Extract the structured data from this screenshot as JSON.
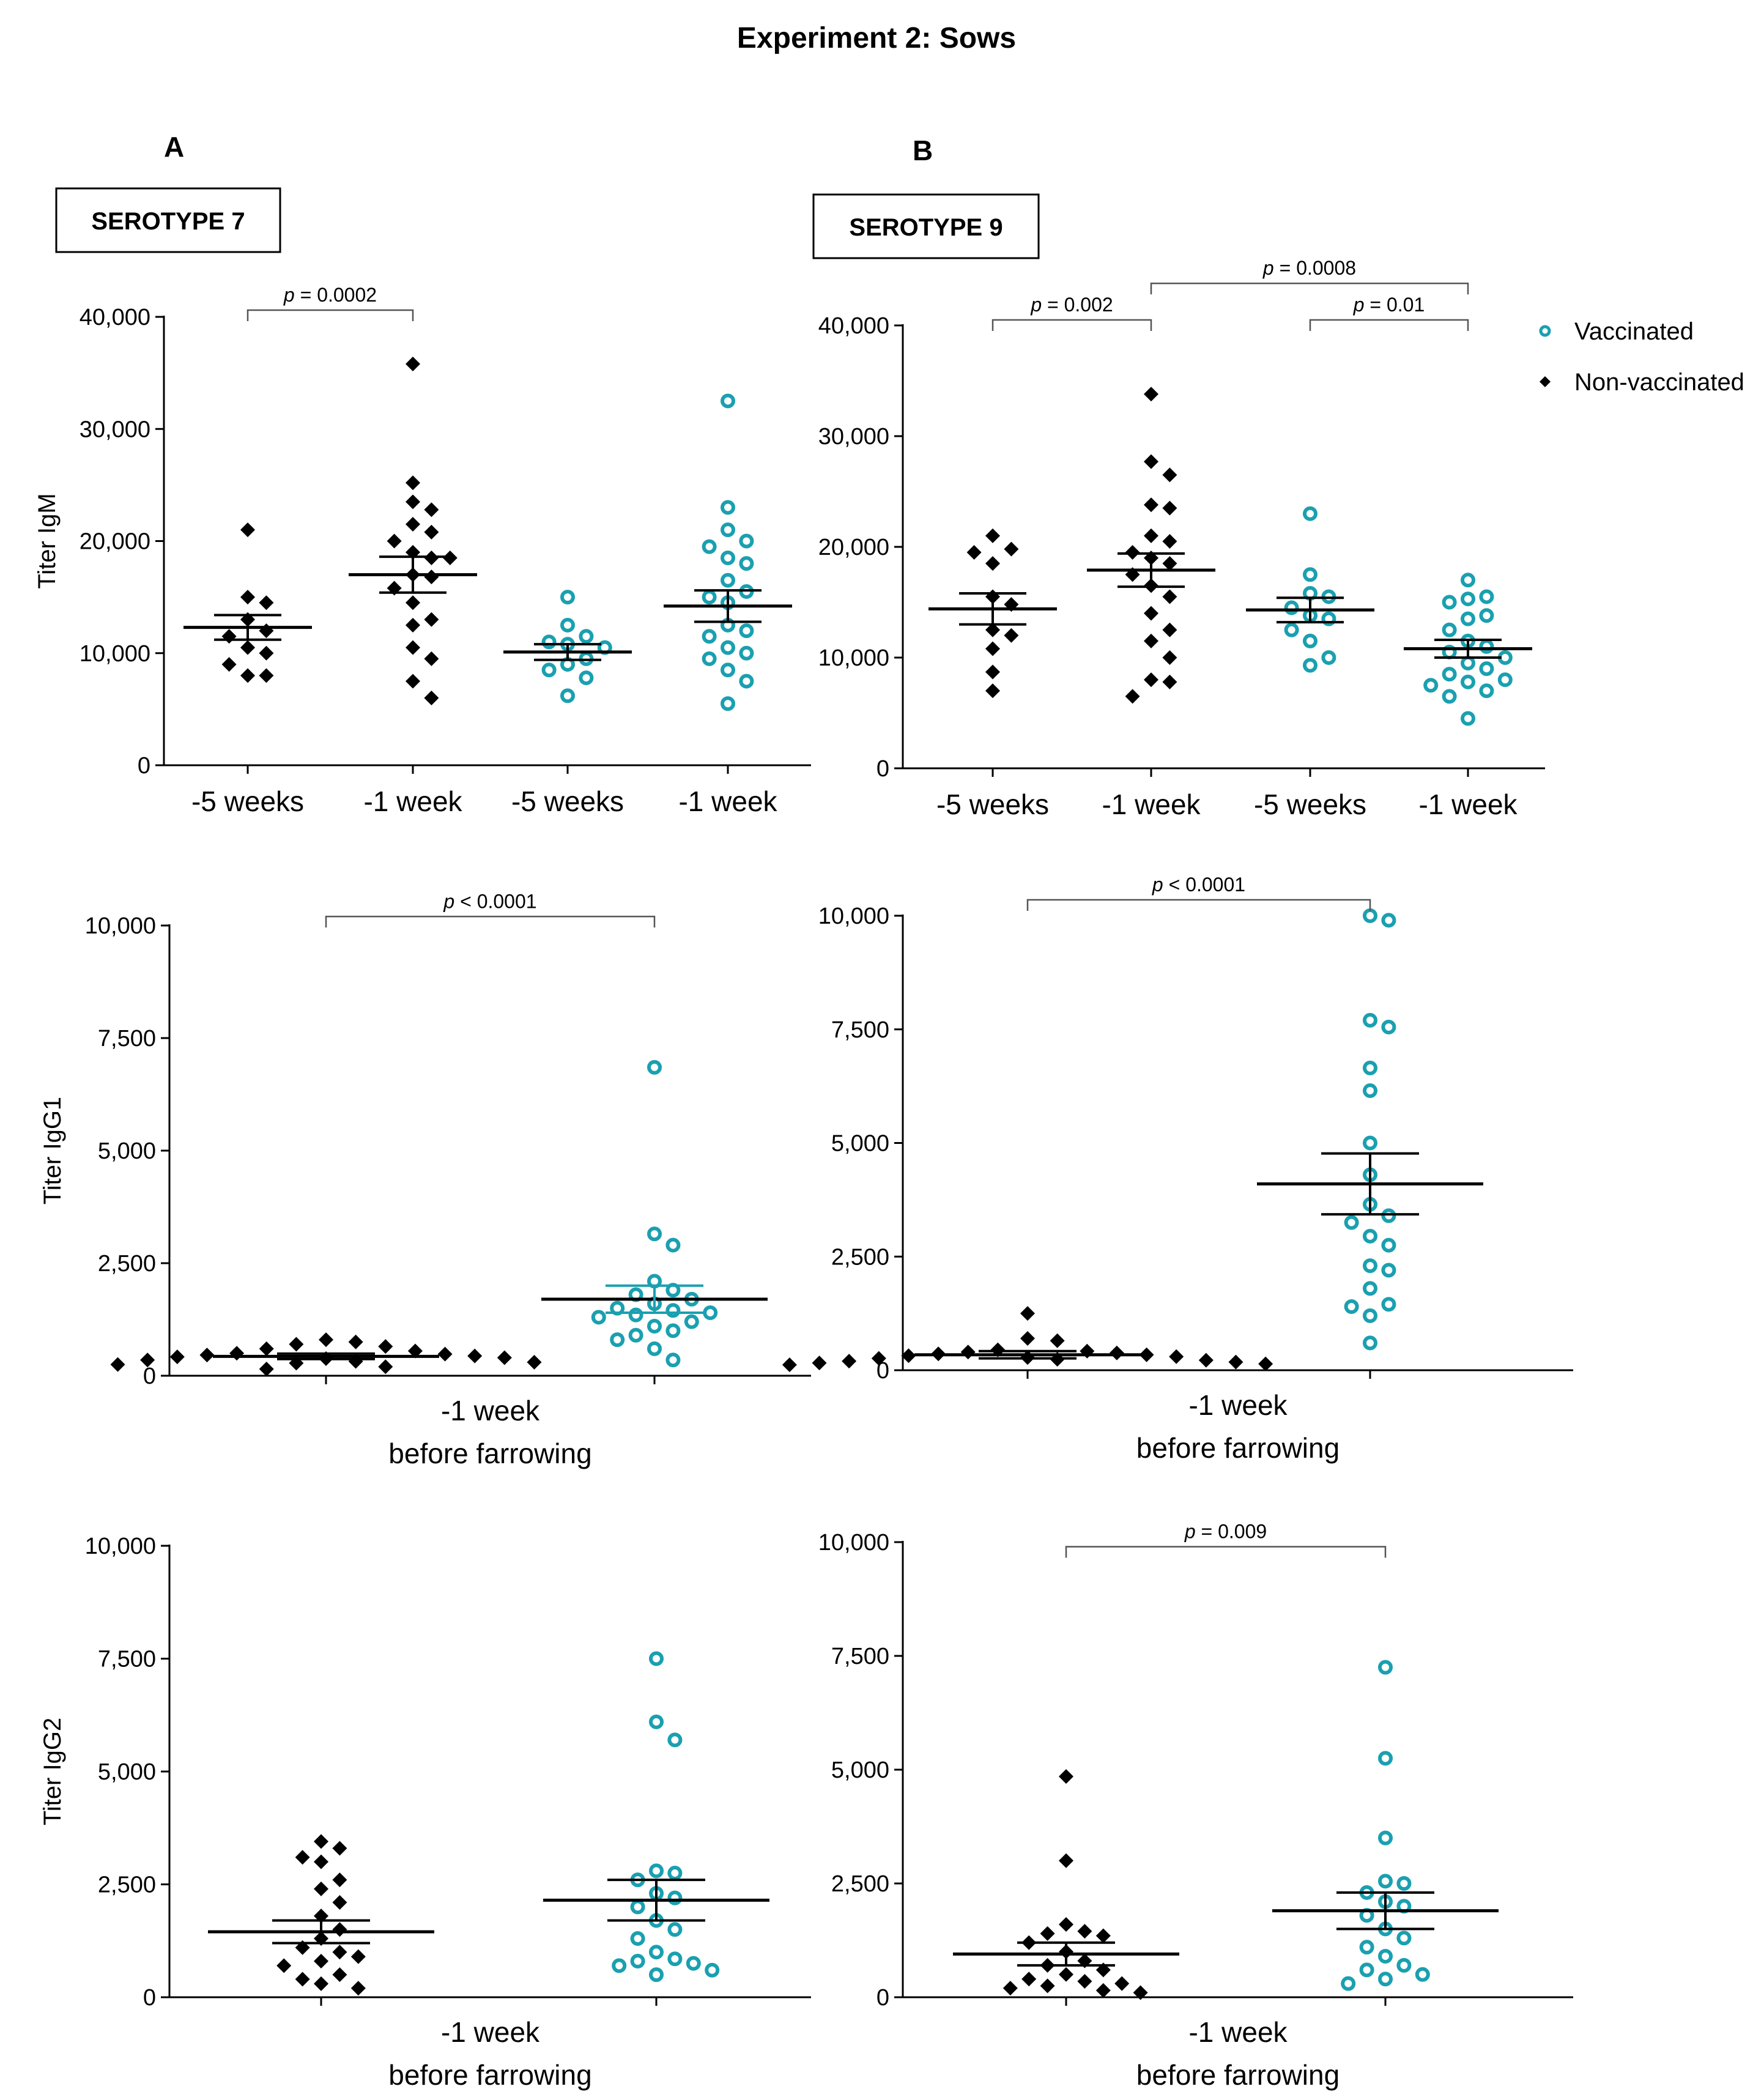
{
  "figure_title": "Experiment 2: Sows",
  "panels": [
    {
      "letter": "A",
      "serotype": "SEROTYPE 7"
    },
    {
      "letter": "B",
      "serotype": "SEROTYPE 9"
    }
  ],
  "legend": {
    "vaccinated": "Vaccinated",
    "non_vaccinated": "Non-vaccinated"
  },
  "colors": {
    "non_vaccinated": "#000000",
    "vaccinated": "#1aa0b0",
    "bracket": "#555555"
  },
  "chart_data": [
    {
      "id": "igm-7",
      "type": "scatter",
      "ylabel": "Titer IgM",
      "ylim": [
        0,
        40000
      ],
      "yticks": [
        0,
        10000,
        20000,
        30000,
        40000
      ],
      "ytick_labels": [
        "0",
        "10,000",
        "20,000",
        "30,000",
        "40,000"
      ],
      "categories": [
        "-5 weeks",
        "-1 week",
        "-5 weeks",
        "-1 week"
      ],
      "xlabel_lines": [],
      "groups": [
        {
          "series": "Non-vaccinated",
          "marker": "diamond",
          "mean": 12300,
          "sem": 1100,
          "values": [
            21000,
            15000,
            14500,
            13000,
            12000,
            11500,
            10500,
            10000,
            9000,
            8000,
            8000
          ]
        },
        {
          "series": "Non-vaccinated",
          "marker": "diamond",
          "mean": 17000,
          "sem": 1600,
          "values": [
            35800,
            25200,
            23500,
            22800,
            21500,
            20800,
            20000,
            19000,
            18500,
            18500,
            17000,
            16800,
            15800,
            14500,
            13000,
            12500,
            10500,
            9500,
            7500,
            6000
          ]
        },
        {
          "series": "Vaccinated",
          "marker": "circle",
          "mean": 10100,
          "sem": 700,
          "values": [
            15000,
            12500,
            11500,
            11000,
            10800,
            10500,
            9500,
            9000,
            8500,
            7800,
            6200
          ]
        },
        {
          "series": "Vaccinated",
          "marker": "circle",
          "mean": 14200,
          "sem": 1400,
          "values": [
            32500,
            23000,
            21000,
            20000,
            19500,
            18500,
            18000,
            16500,
            15500,
            15000,
            14500,
            12500,
            12000,
            11500,
            10500,
            10000,
            9500,
            8500,
            7500,
            5500
          ]
        }
      ],
      "brackets": [
        {
          "from": 0,
          "to": 1,
          "label": "p = 0.0002",
          "value": 40600
        }
      ]
    },
    {
      "id": "igm-9",
      "type": "scatter",
      "ylabel": "",
      "ylim": [
        0,
        40000
      ],
      "yticks": [
        0,
        10000,
        20000,
        30000,
        40000
      ],
      "ytick_labels": [
        "0",
        "10,000",
        "20,000",
        "30,000",
        "40,000"
      ],
      "categories": [
        "-5 weeks",
        "-1 week",
        "-5 weeks",
        "-1 week"
      ],
      "xlabel_lines": [],
      "groups": [
        {
          "series": "Non-vaccinated",
          "marker": "diamond",
          "mean": 14400,
          "sem": 1400,
          "values": [
            21000,
            19800,
            19500,
            18500,
            15500,
            14800,
            12500,
            12000,
            10800,
            8700,
            7000
          ]
        },
        {
          "series": "Non-vaccinated",
          "marker": "diamond",
          "mean": 17900,
          "sem": 1500,
          "values": [
            33800,
            27700,
            26500,
            23800,
            23500,
            21000,
            20500,
            19500,
            19000,
            18500,
            17500,
            16500,
            15500,
            14000,
            12500,
            11500,
            10000,
            8000,
            7800,
            6500
          ]
        },
        {
          "series": "Vaccinated",
          "marker": "circle",
          "mean": 14300,
          "sem": 1100,
          "values": [
            23000,
            17500,
            15800,
            15500,
            14500,
            13800,
            13500,
            12500,
            11500,
            10000,
            9300
          ]
        },
        {
          "series": "Vaccinated",
          "marker": "circle",
          "mean": 10800,
          "sem": 800,
          "values": [
            17000,
            15500,
            15300,
            15000,
            13800,
            13500,
            12500,
            11500,
            11000,
            10500,
            10000,
            9500,
            9000,
            8500,
            8000,
            7800,
            7500,
            7000,
            6500,
            4500
          ]
        }
      ],
      "brackets": [
        {
          "from": 0,
          "to": 1,
          "label": "p = 0.002",
          "value": 40500
        },
        {
          "from": 1,
          "to": 3,
          "label": "p = 0.0008",
          "value": 43800
        },
        {
          "from": 2,
          "to": 3,
          "label": "p = 0.01",
          "value": 40500
        }
      ],
      "legend": true
    },
    {
      "id": "igg1-7",
      "type": "scatter",
      "ylabel": "Titer IgG1",
      "ylim": [
        0,
        10000
      ],
      "yticks": [
        0,
        2500,
        5000,
        7500,
        10000
      ],
      "ytick_labels": [
        "0",
        "2,500",
        "5,000",
        "7,500",
        "10,000"
      ],
      "categories": [
        "",
        ""
      ],
      "xlabel_lines": [
        "-1 week",
        "before farrowing"
      ],
      "groups": [
        {
          "series": "Non-vaccinated",
          "marker": "diamond",
          "mean": 430,
          "sem": 60,
          "spread": "wide",
          "values": [
            800,
            750,
            700,
            650,
            600,
            550,
            500,
            480,
            460,
            440,
            420,
            400,
            380,
            350,
            320,
            300,
            280,
            250,
            200,
            150
          ]
        },
        {
          "series": "Vaccinated",
          "marker": "circle",
          "mean": 1700,
          "sem": 300,
          "sem_color": "vaccinated",
          "values": [
            6850,
            3150,
            2900,
            2100,
            1900,
            1800,
            1700,
            1600,
            1500,
            1450,
            1400,
            1350,
            1300,
            1200,
            1100,
            1000,
            900,
            800,
            600,
            350
          ]
        }
      ],
      "brackets": [
        {
          "from": 0,
          "to": 1,
          "label": "p < 0.0001",
          "value": 10200
        }
      ]
    },
    {
      "id": "igg1-9",
      "type": "scatter",
      "ylabel": "",
      "ylim": [
        0,
        10000
      ],
      "yticks": [
        0,
        2500,
        5000,
        7500,
        10000
      ],
      "ytick_labels": [
        "0",
        "2,500",
        "5,000",
        "7,500",
        "10,000"
      ],
      "categories": [
        "",
        ""
      ],
      "xlabel_lines": [
        "-1 week",
        "before farrowing"
      ],
      "groups": [
        {
          "series": "Non-vaccinated",
          "marker": "diamond",
          "mean": 340,
          "sem": 80,
          "spread": "wide",
          "values": [
            1250,
            700,
            650,
            450,
            420,
            400,
            380,
            360,
            340,
            320,
            300,
            280,
            260,
            240,
            220,
            200,
            180,
            160,
            140,
            120
          ]
        },
        {
          "series": "Vaccinated",
          "marker": "circle",
          "mean": 4100,
          "sem": 670,
          "values": [
            10000,
            9900,
            7700,
            7550,
            6650,
            6150,
            5000,
            4300,
            3650,
            3400,
            3250,
            2950,
            2750,
            2300,
            2200,
            1800,
            1450,
            1400,
            1200,
            600
          ]
        }
      ],
      "brackets": [
        {
          "from": 0,
          "to": 1,
          "label": "p < 0.0001",
          "value": 10350
        }
      ]
    },
    {
      "id": "igg2-7",
      "type": "scatter",
      "ylabel": "Titer IgG2",
      "ylim": [
        0,
        10000
      ],
      "yticks": [
        0,
        2500,
        5000,
        7500,
        10000
      ],
      "ytick_labels": [
        "0",
        "2,500",
        "5,000",
        "7,500",
        "10,000"
      ],
      "categories": [
        "",
        ""
      ],
      "xlabel_lines": [
        "-1 week",
        "before farrowing"
      ],
      "groups": [
        {
          "series": "Non-vaccinated",
          "marker": "diamond",
          "mean": 1450,
          "sem": 250,
          "values": [
            3450,
            3300,
            3100,
            3000,
            2600,
            2400,
            2100,
            1800,
            1500,
            1300,
            1100,
            1000,
            900,
            800,
            700,
            500,
            400,
            300,
            200
          ]
        },
        {
          "series": "Vaccinated",
          "marker": "circle",
          "mean": 2150,
          "sem": 450,
          "values": [
            7500,
            6100,
            5700,
            2800,
            2750,
            2600,
            2300,
            2200,
            2000,
            1700,
            1500,
            1300,
            1000,
            850,
            800,
            750,
            700,
            600,
            500
          ]
        }
      ],
      "brackets": []
    },
    {
      "id": "igg2-9",
      "type": "scatter",
      "ylabel": "",
      "ylim": [
        0,
        10000
      ],
      "yticks": [
        0,
        2500,
        5000,
        7500,
        10000
      ],
      "ytick_labels": [
        "0",
        "2,500",
        "5,000",
        "7,500",
        "10,000"
      ],
      "categories": [
        "",
        ""
      ],
      "xlabel_lines": [
        "-1 week",
        "before farrowing"
      ],
      "groups": [
        {
          "series": "Non-vaccinated",
          "marker": "diamond",
          "mean": 950,
          "sem": 250,
          "values": [
            4850,
            3000,
            1600,
            1450,
            1400,
            1350,
            1200,
            1000,
            800,
            700,
            600,
            500,
            400,
            350,
            300,
            250,
            200,
            150,
            100
          ]
        },
        {
          "series": "Vaccinated",
          "marker": "circle",
          "mean": 1900,
          "sem": 400,
          "values": [
            7250,
            5250,
            3500,
            2550,
            2500,
            2300,
            2100,
            2000,
            1800,
            1500,
            1300,
            1100,
            900,
            700,
            600,
            500,
            400,
            300
          ]
        }
      ],
      "brackets": [
        {
          "from": 0,
          "to": 1,
          "label": "p = 0.009",
          "value": 9900
        }
      ]
    }
  ]
}
